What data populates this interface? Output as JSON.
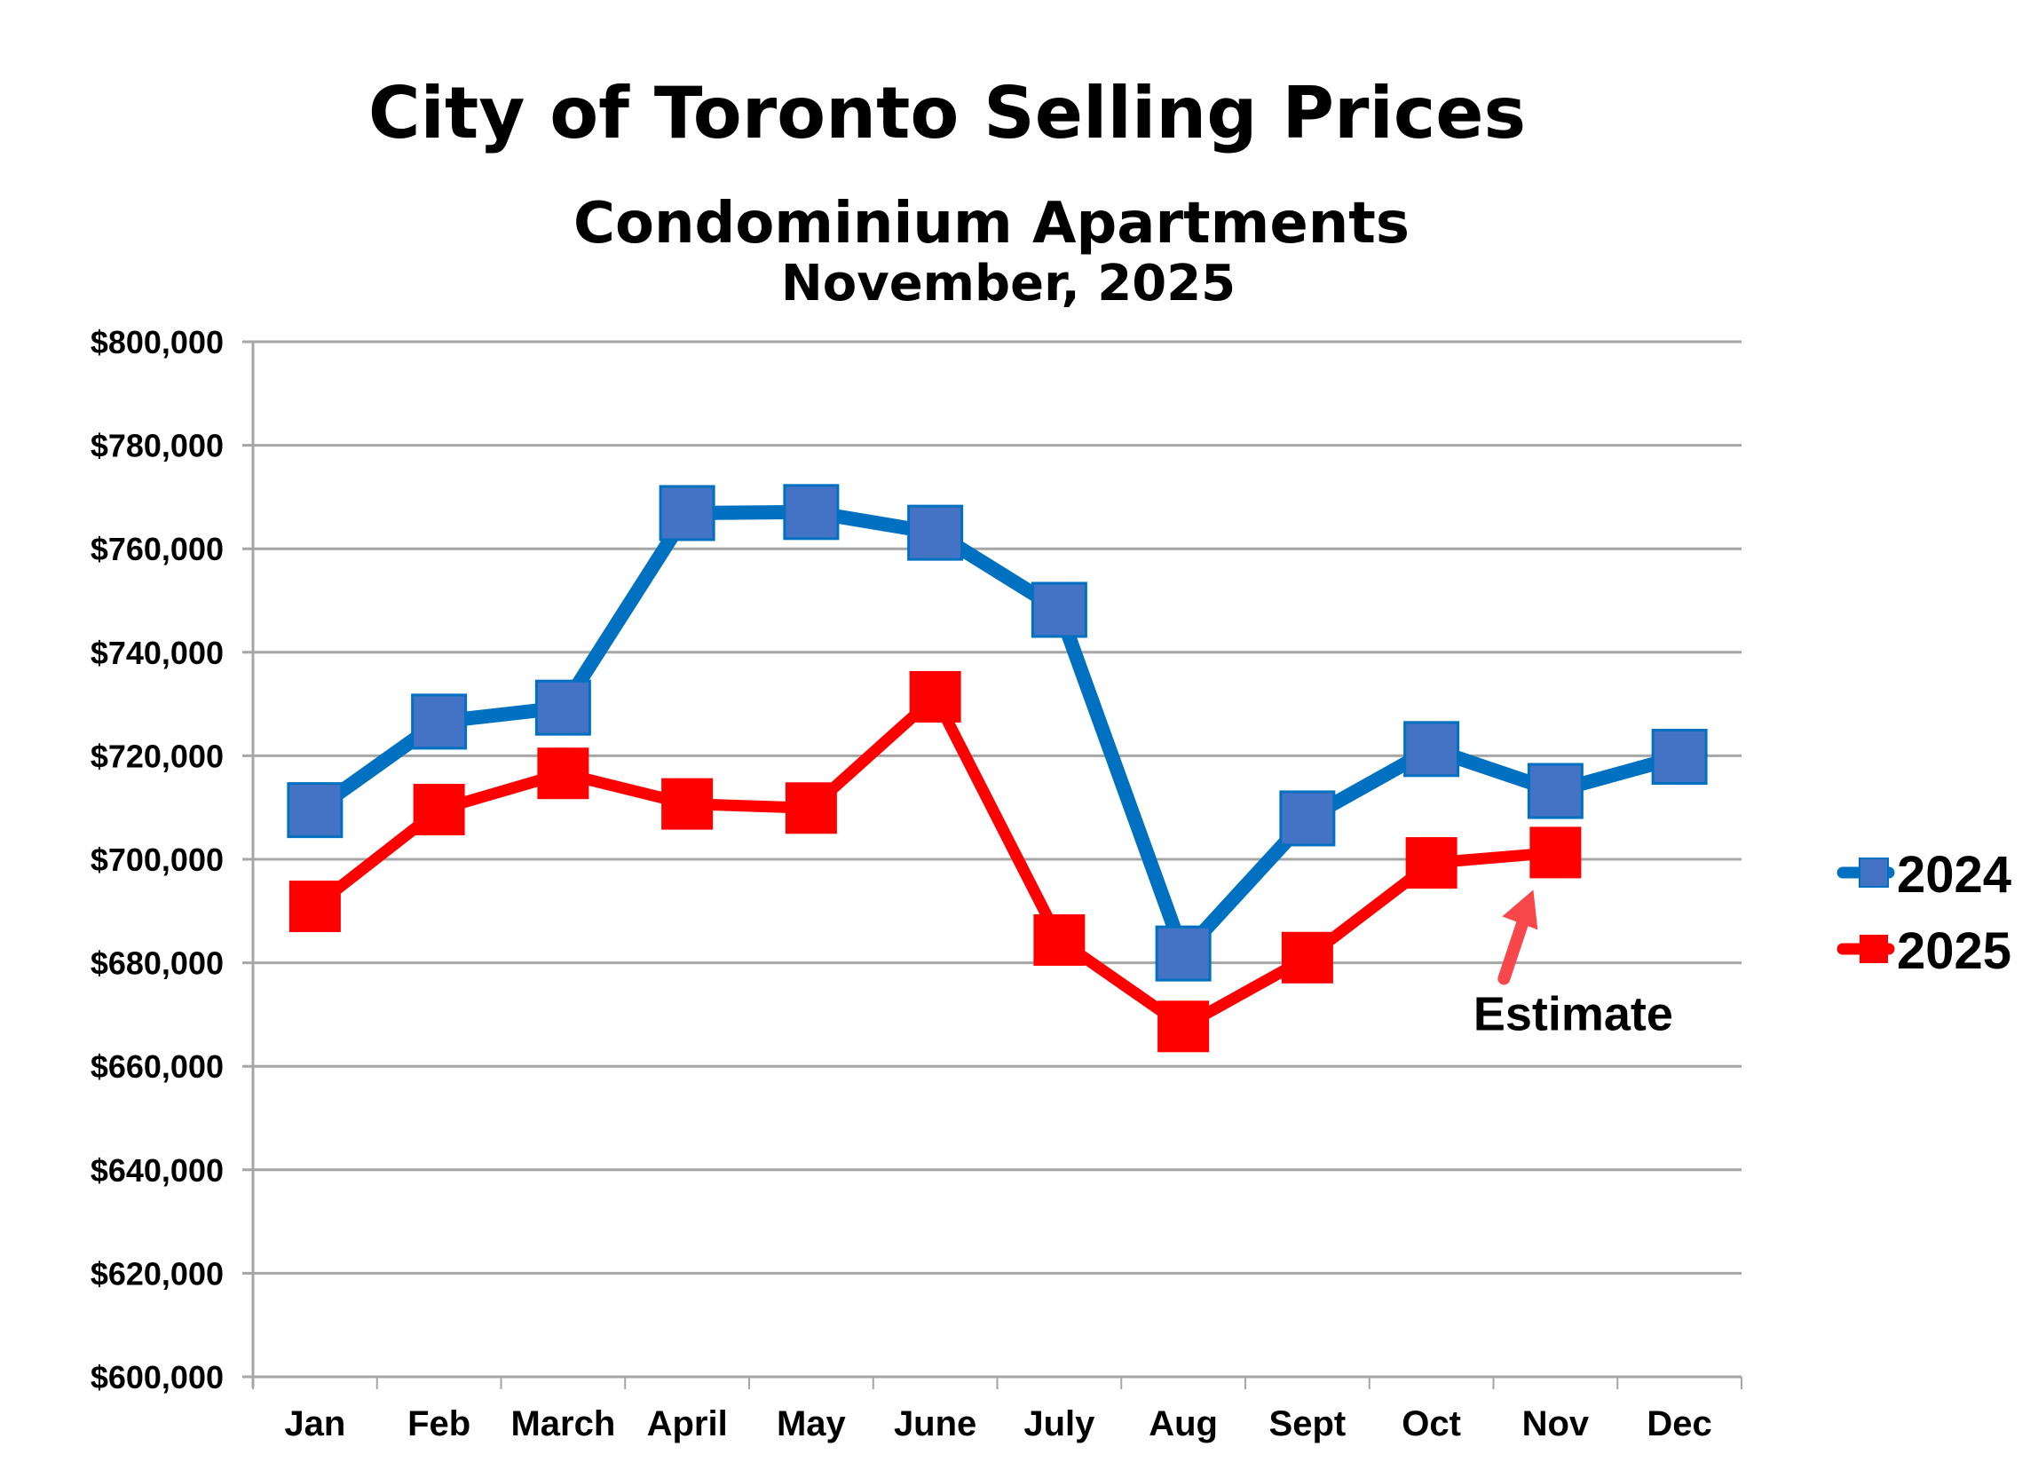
{
  "chart_data": {
    "type": "line",
    "title": "City of Toronto Selling Prices",
    "subtitle": "Condominium Apartments",
    "subtitle2": "November, 2025",
    "xlabel": "",
    "ylabel": "",
    "categories": [
      "Jan",
      "Feb",
      "March",
      "April",
      "May",
      "June",
      "July",
      "Aug",
      "Sept",
      "Oct",
      "Nov",
      "Dec"
    ],
    "ylim": [
      600000,
      800000
    ],
    "y_tick_step": 20000,
    "y_tick_labels": [
      "$600,000",
      "$620,000",
      "$640,000",
      "$660,000",
      "$680,000",
      "$700,000",
      "$720,000",
      "$740,000",
      "$760,000",
      "$780,000",
      "$800,000"
    ],
    "grid": true,
    "legend_position": "right",
    "series": [
      {
        "name": "2024",
        "line_color": "#0070C0",
        "marker_fill": "#4472C4",
        "marker_stroke": "#0070C0",
        "marker": "square",
        "values": [
          709500,
          726600,
          729300,
          766900,
          767100,
          763100,
          748200,
          681800,
          707900,
          721300,
          713200,
          719800
        ]
      },
      {
        "name": "2025",
        "line_color": "#FF0000",
        "marker_fill": "#FF0000",
        "marker_stroke": "#FF0000",
        "marker": "square",
        "values": [
          690900,
          709600,
          716600,
          710700,
          709900,
          731400,
          684400,
          667700,
          681000,
          699300,
          701300,
          null
        ]
      }
    ],
    "annotations": [
      {
        "text": "Estimate",
        "target_series": "2025",
        "target_category": "Nov",
        "arrow_color": "#F7474B"
      }
    ]
  }
}
